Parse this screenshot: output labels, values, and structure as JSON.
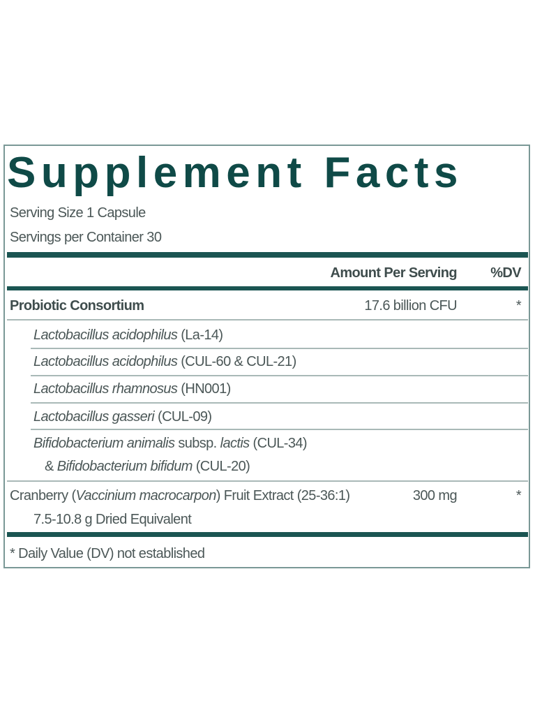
{
  "title": "Supplement Facts",
  "serving_size": "Serving Size 1 Capsule",
  "servings_per_container": "Servings per Container 30",
  "header": {
    "amount": "Amount Per Serving",
    "dv": "%DV"
  },
  "rows": [
    {
      "name": "Probiotic Consortium",
      "amount": "17.6 billion CFU",
      "dv": "*"
    },
    {
      "italic": "Lactobacillus acidophilus",
      "rest": " (La-14)"
    },
    {
      "italic": "Lactobacillus acidophilus",
      "rest": " (CUL-60 & CUL-21)"
    },
    {
      "italic": "Lactobacillus rhamnosus",
      "rest": " (HN001)"
    },
    {
      "italic": "Lactobacillus gasseri",
      "rest": " (CUL-09)"
    },
    {
      "italic": "Bifidobacterium animalis",
      "mid": " subsp. ",
      "italic2": "lactis",
      "rest": " (CUL-34)",
      "line2_pre": "& ",
      "line2_italic": "Bifidobacterium bifidum",
      "line2_rest": " (CUL-20)"
    },
    {
      "pre": "Cranberry (",
      "italic": "Vaccinium macrocarpon",
      "rest": ") Fruit Extract (25-36:1)",
      "amount": "300 mg",
      "dv": "*",
      "line2": "7.5-10.8 g Dried Equivalent"
    }
  ],
  "footnote": "* Daily Value (DV) not established",
  "colors": {
    "title": "#0f4a47",
    "rule": "#1b5552",
    "text": "#4b5757"
  }
}
